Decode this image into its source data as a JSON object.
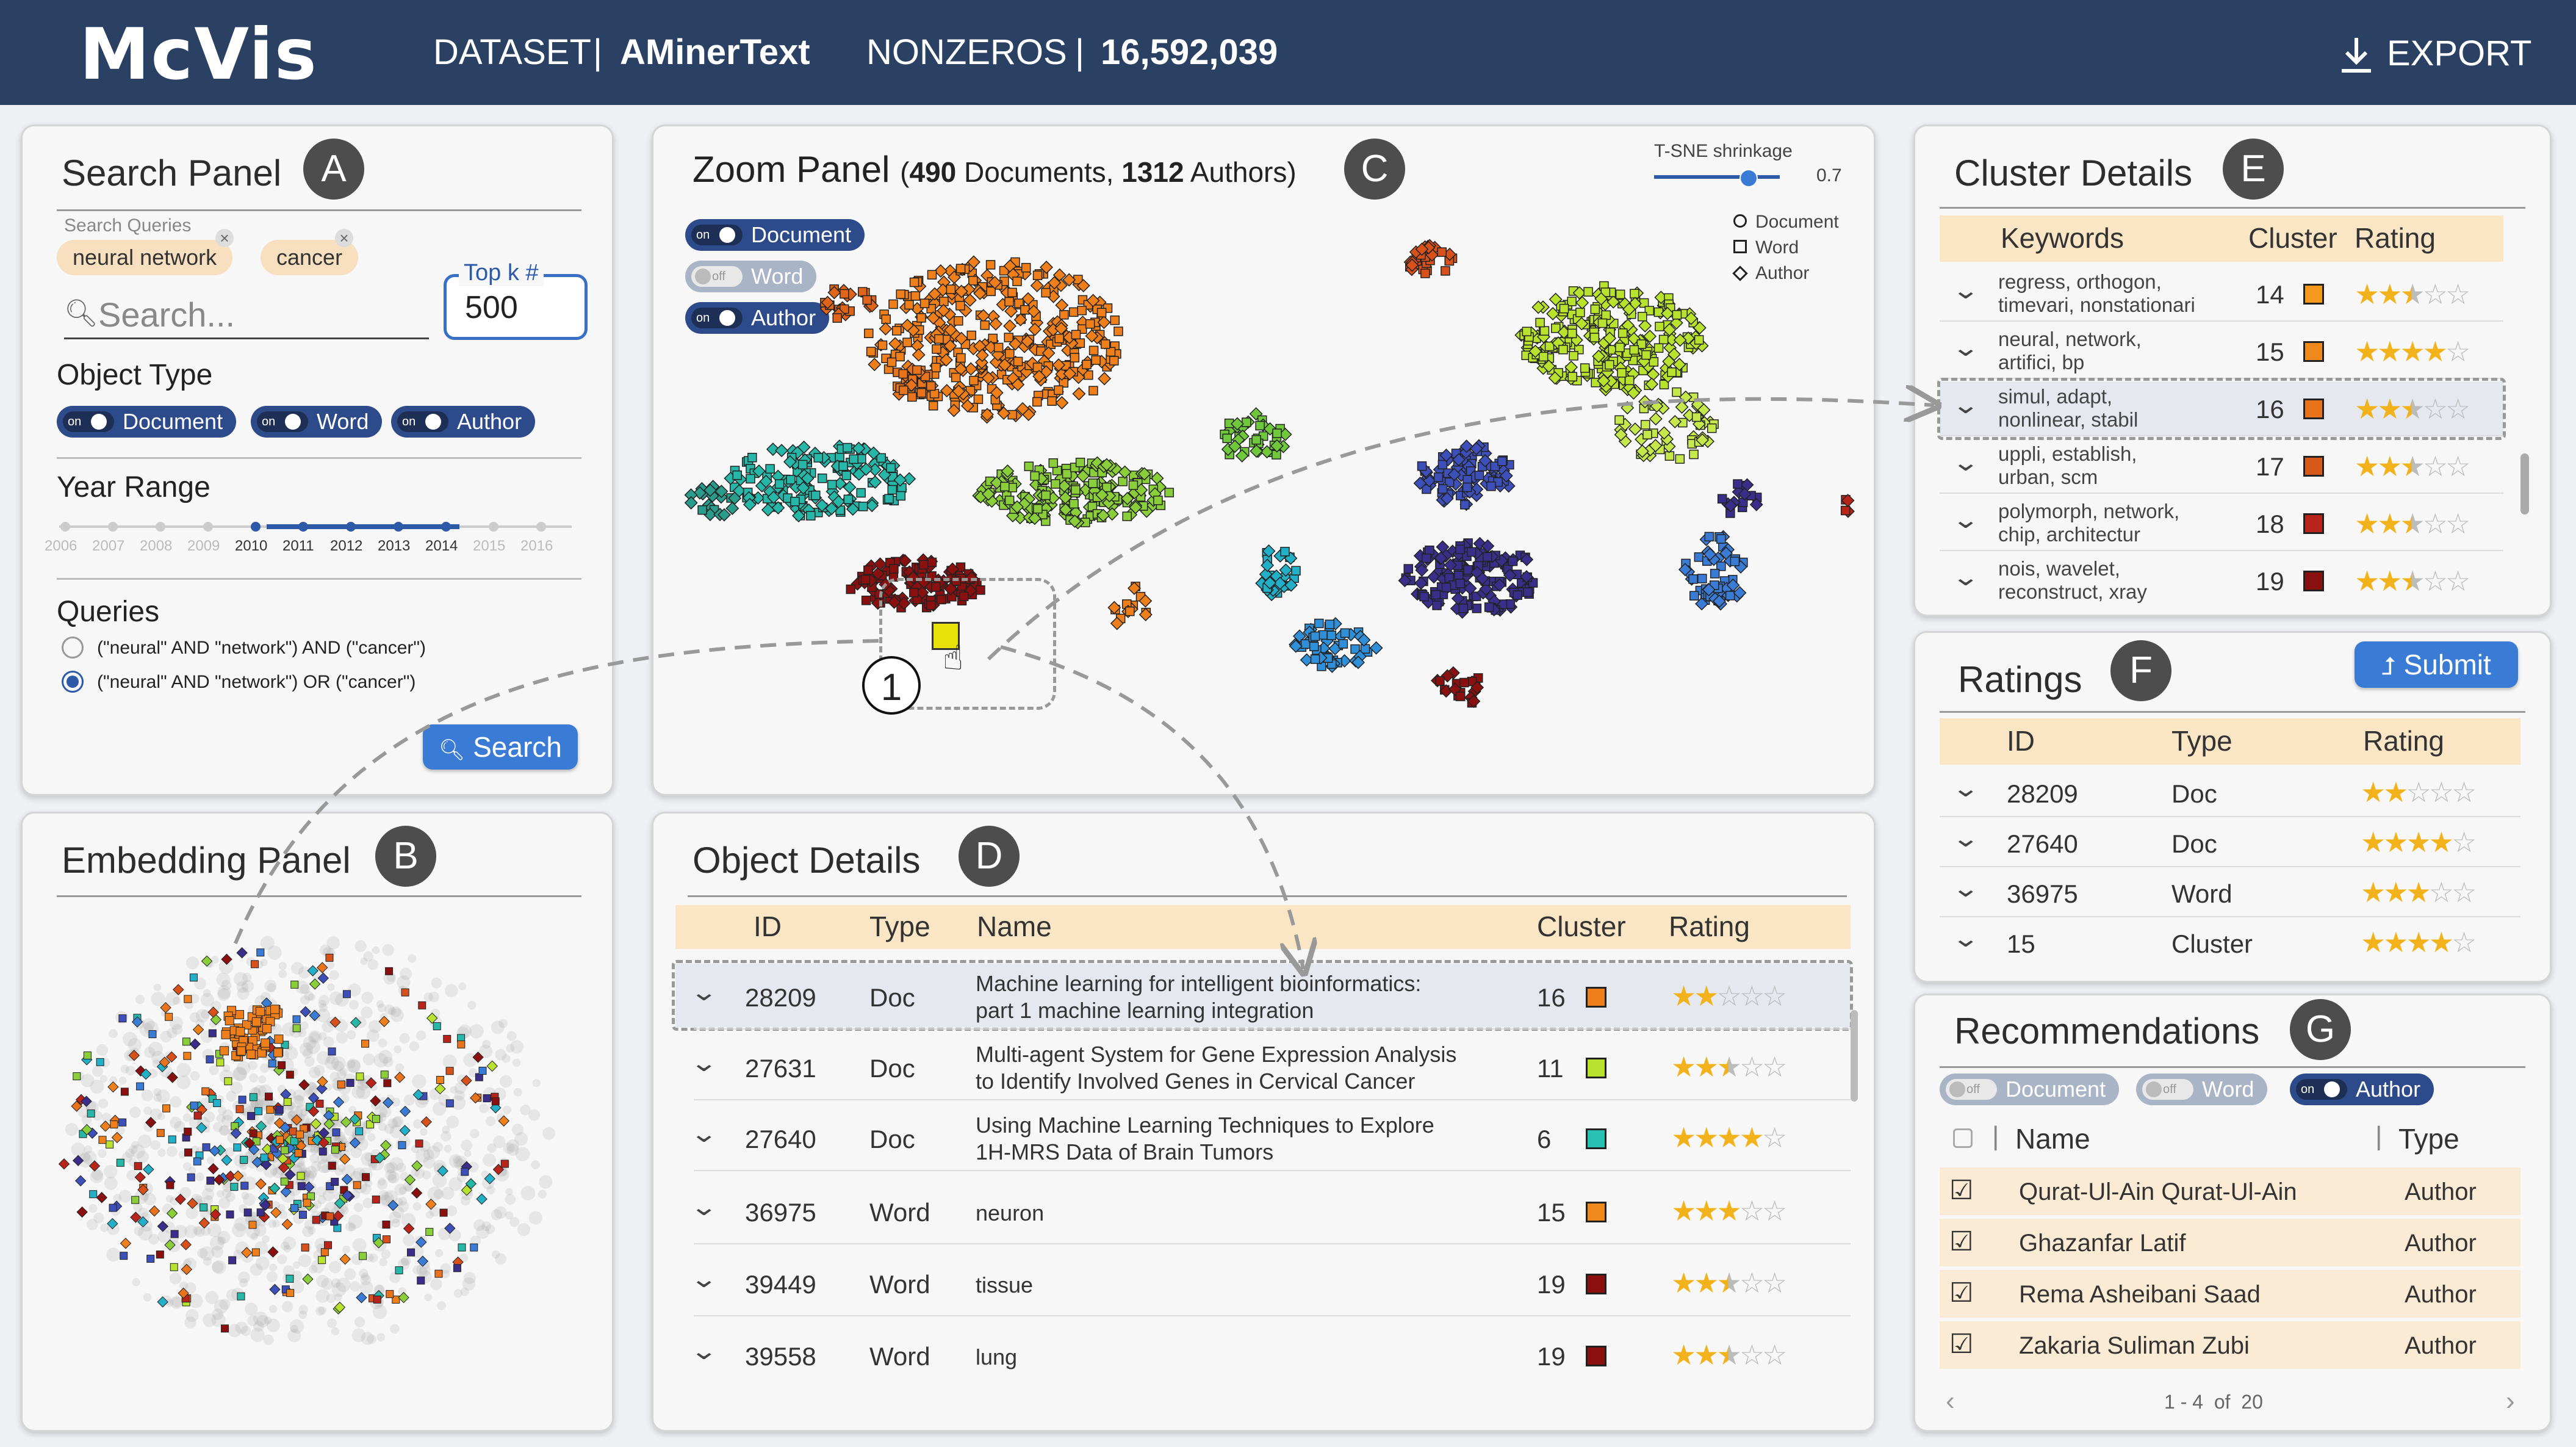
{
  "app": {
    "title": "McVis"
  },
  "header": {
    "dataset_label": "DATASET",
    "dataset_value": "AMinerText",
    "nonzeros_label": "NONZEROS",
    "nonzeros_value": "16,592,039",
    "export_label": "EXPORT",
    "export_icon": "download-icon"
  },
  "colors": {
    "header_bg": "#2b4163",
    "accent": "#3a7bd5",
    "table_header": "#fae5c4",
    "star": "#f2b21b"
  },
  "search_panel": {
    "title": "Search Panel",
    "badge": "A",
    "queries_label": "Search Queries",
    "query_chips": [
      "neural network",
      "cancer"
    ],
    "search_placeholder": "Search...",
    "topk_label": "Top k #",
    "topk_value": "500",
    "object_type_label": "Object Type",
    "object_types": [
      {
        "label": "Document",
        "state": "on"
      },
      {
        "label": "Word",
        "state": "on"
      },
      {
        "label": "Author",
        "state": "on"
      }
    ],
    "year_range_label": "Year Range",
    "years": [
      "2006",
      "2007",
      "2008",
      "2009",
      "2010",
      "2011",
      "2012",
      "2013",
      "2014",
      "2015",
      "2016"
    ],
    "year_range_selected": [
      "2010",
      "2014"
    ],
    "queries_section_label": "Queries",
    "query_options": [
      {
        "text": "(\"neural\" AND \"network\") AND (\"cancer\")",
        "selected": false
      },
      {
        "text": "(\"neural\" AND \"network\") OR (\"cancer\")",
        "selected": true
      }
    ],
    "search_button": "Search"
  },
  "embedding_panel": {
    "title": "Embedding Panel",
    "badge": "B"
  },
  "zoom_panel": {
    "title": "Zoom Panel",
    "docs_count": "490",
    "docs_label": "Documents,",
    "authors_count": "1312",
    "authors_label": "Authors)",
    "open_paren": "(",
    "badge": "C",
    "shrinkage_label": "T-SNE shrinkage",
    "shrinkage_value": "0.7",
    "toggles": [
      {
        "label": "Document",
        "state": "on"
      },
      {
        "label": "Word",
        "state": "off"
      },
      {
        "label": "Author",
        "state": "on"
      }
    ],
    "legend": [
      "Document",
      "Word",
      "Author"
    ],
    "annotation": "1"
  },
  "object_details": {
    "title": "Object Details",
    "badge": "D",
    "columns": [
      "ID",
      "Type",
      "Name",
      "Cluster",
      "Rating"
    ],
    "rows": [
      {
        "id": "28209",
        "type": "Doc",
        "name1": "Machine learning for intelligent bioinformatics:",
        "name2": "part 1 machine learning integration",
        "cluster": "16",
        "color": "#ef7f1a",
        "rating": 2
      },
      {
        "id": "27631",
        "type": "Doc",
        "name1": "Multi-agent System for Gene Expression Analysis",
        "name2": "to Identify Involved Genes in Cervical Cancer",
        "cluster": "11",
        "color": "#b8e22e",
        "rating": 2.5
      },
      {
        "id": "27640",
        "type": "Doc",
        "name1": "Using Machine Learning Techniques to Explore",
        "name2": "1H-MRS Data of Brain Tumors",
        "cluster": "6",
        "color": "#28c2b4",
        "rating": 4
      },
      {
        "id": "36975",
        "type": "Word",
        "name1": "neuron",
        "name2": "",
        "cluster": "15",
        "color": "#f08a1d",
        "rating": 3
      },
      {
        "id": "39449",
        "type": "Word",
        "name1": "tissue",
        "name2": "",
        "cluster": "19",
        "color": "#8a1010",
        "rating": 2.5
      },
      {
        "id": "39558",
        "type": "Word",
        "name1": "lung",
        "name2": "",
        "cluster": "19",
        "color": "#8a1010",
        "rating": 2.5
      }
    ]
  },
  "cluster_details": {
    "title": "Cluster Details",
    "badge": "E",
    "columns": [
      "Keywords",
      "Cluster",
      "Rating"
    ],
    "rows": [
      {
        "k1": "regress, orthogon,",
        "k2": "timevari, nonstationari",
        "cluster": "14",
        "color": "#f59a1d",
        "rating": 2.5
      },
      {
        "k1": "neural, network,",
        "k2": "artifici, bp",
        "cluster": "15",
        "color": "#f08a1d",
        "rating": 4
      },
      {
        "k1": "simul, adapt,",
        "k2": "nonlinear, stabil",
        "cluster": "16",
        "color": "#e8731a",
        "rating": 2.5
      },
      {
        "k1": "uppli, establish,",
        "k2": "urban, scm",
        "cluster": "17",
        "color": "#d85a18",
        "rating": 2.5
      },
      {
        "k1": "polymorph, network,",
        "k2": "chip, architectur",
        "cluster": "18",
        "color": "#b8241a",
        "rating": 2.5
      },
      {
        "k1": "nois, wavelet,",
        "k2": "reconstruct, xray",
        "cluster": "19",
        "color": "#8a1010",
        "rating": 2.5
      }
    ]
  },
  "ratings": {
    "title": "Ratings",
    "badge": "F",
    "submit_label": "Submit",
    "columns": [
      "ID",
      "Type",
      "Rating"
    ],
    "rows": [
      {
        "id": "28209",
        "type": "Doc",
        "rating": 2
      },
      {
        "id": "27640",
        "type": "Doc",
        "rating": 4
      },
      {
        "id": "36975",
        "type": "Word",
        "rating": 3
      },
      {
        "id": "15",
        "type": "Cluster",
        "rating": 4
      }
    ]
  },
  "recommendations": {
    "title": "Recommendations",
    "badge": "G",
    "toggles": [
      {
        "label": "Document",
        "state": "off"
      },
      {
        "label": "Word",
        "state": "off"
      },
      {
        "label": "Author",
        "state": "on"
      }
    ],
    "columns": [
      "Name",
      "Type"
    ],
    "rows": [
      {
        "name": "Qurat-Ul-Ain Qurat-Ul-Ain",
        "type": "Author",
        "checked": true
      },
      {
        "name": "Ghazanfar Latif",
        "type": "Author",
        "checked": true
      },
      {
        "name": "Rema Asheibani Saad",
        "type": "Author",
        "checked": true
      },
      {
        "name": "Zakaria Suliman Zubi",
        "type": "Author",
        "checked": true
      }
    ],
    "page_from": "1",
    "page_sep1": "-",
    "page_to": "4",
    "page_of": "of",
    "page_total": "20"
  }
}
